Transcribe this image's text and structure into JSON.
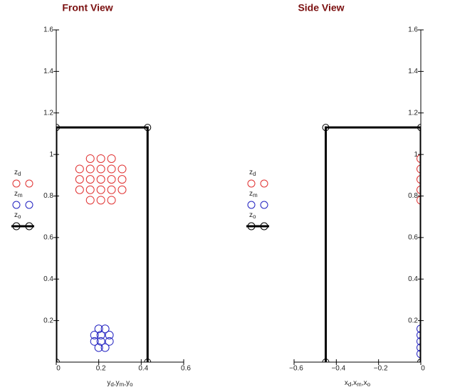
{
  "chart_data": [
    {
      "type": "scatter",
      "title": "Front View",
      "x_label": "yd,ym,yo",
      "xlim": [
        0,
        0.6
      ],
      "ylim": [
        0,
        1.6
      ],
      "xticks": [
        0,
        0.2,
        0.4,
        0.6
      ],
      "yticks": [
        0.2,
        0.4,
        0.6,
        0.8,
        1,
        1.2,
        1.4,
        1.6
      ],
      "legend_position": "left",
      "grid": false,
      "series": [
        {
          "name": "zd",
          "color": "#e03030",
          "line": false,
          "x": [
            0.16,
            0.21,
            0.26,
            0.11,
            0.16,
            0.21,
            0.26,
            0.31,
            0.11,
            0.16,
            0.21,
            0.26,
            0.31,
            0.11,
            0.16,
            0.21,
            0.26,
            0.31,
            0.16,
            0.21,
            0.26
          ],
          "y": [
            0.98,
            0.98,
            0.98,
            0.93,
            0.93,
            0.93,
            0.93,
            0.93,
            0.88,
            0.88,
            0.88,
            0.88,
            0.88,
            0.83,
            0.83,
            0.83,
            0.83,
            0.83,
            0.78,
            0.78,
            0.78
          ]
        },
        {
          "name": "zm",
          "color": "#2020c0",
          "line": false,
          "x": [
            0.2,
            0.23,
            0.18,
            0.21,
            0.25,
            0.18,
            0.21,
            0.25,
            0.2,
            0.23
          ],
          "y": [
            0.16,
            0.16,
            0.13,
            0.13,
            0.13,
            0.1,
            0.1,
            0.1,
            0.07,
            0.07
          ]
        },
        {
          "name": "zo",
          "color": "#000000",
          "line": true,
          "x": [
            0,
            0,
            0.43,
            0.43
          ],
          "y": [
            0,
            1.13,
            1.13,
            0
          ]
        }
      ]
    },
    {
      "type": "scatter",
      "title": "Side View",
      "x_label": "xd,xm,xo",
      "xlim": [
        -0.6,
        0
      ],
      "ylim": [
        0,
        1.6
      ],
      "xticks": [
        {
          "value": -0.6,
          "label": "−0.6"
        },
        {
          "value": -0.4,
          "label": "−0.4"
        },
        {
          "value": -0.2,
          "label": "−0.2"
        },
        0
      ],
      "yticks": [
        0.2,
        0.4,
        0.6,
        0.8,
        1,
        1.2,
        1.4,
        1.6
      ],
      "legend_position": "left",
      "grid": false,
      "series": [
        {
          "name": "zd",
          "color": "#e03030",
          "line": false,
          "x": [
            0,
            0,
            0,
            0,
            0
          ],
          "y": [
            0.98,
            0.93,
            0.88,
            0.83,
            0.78
          ]
        },
        {
          "name": "zm",
          "color": "#2020c0",
          "line": false,
          "x": [
            0,
            0,
            0,
            0,
            0
          ],
          "y": [
            0.16,
            0.13,
            0.1,
            0.07,
            0.04
          ]
        },
        {
          "name": "zo",
          "color": "#000000",
          "line": true,
          "x": [
            -0.45,
            -0.45,
            0,
            0
          ],
          "y": [
            0,
            1.13,
            1.13,
            0
          ]
        }
      ]
    }
  ]
}
